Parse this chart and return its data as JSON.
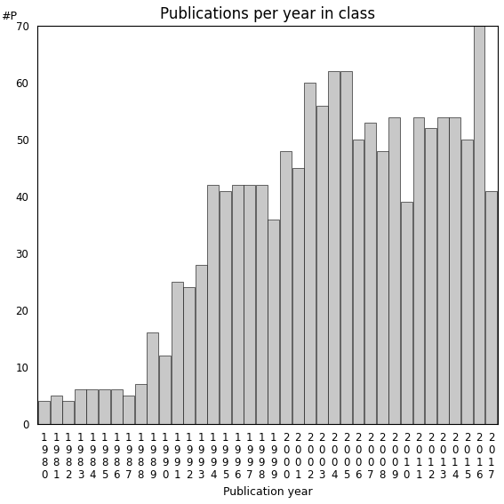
{
  "title": "Publications per year in class",
  "xlabel": "Publication year",
  "ylabel_text": "#P",
  "years": [
    "1980",
    "1981",
    "1982",
    "1983",
    "1984",
    "1985",
    "1986",
    "1987",
    "1988",
    "1989",
    "1990",
    "1991",
    "1992",
    "1993",
    "1994",
    "1995",
    "1996",
    "1997",
    "1998",
    "1999",
    "2000",
    "2001",
    "2002",
    "2003",
    "2004",
    "2005",
    "2006",
    "2007",
    "2008",
    "2009",
    "2010",
    "2011",
    "2012",
    "2013",
    "2014",
    "2015",
    "2016",
    "2017"
  ],
  "values": [
    4,
    5,
    4,
    6,
    6,
    6,
    6,
    5,
    7,
    16,
    12,
    25,
    24,
    28,
    42,
    41,
    42,
    42,
    42,
    36,
    48,
    45,
    60,
    56,
    62,
    62,
    50,
    53,
    48,
    54,
    39,
    54,
    52,
    54,
    54,
    50,
    70,
    41
  ],
  "bar_color": "#c8c8c8",
  "bar_edge_color": "#000000",
  "bar_linewidth": 0.4,
  "ylim": [
    0,
    70
  ],
  "yticks": [
    0,
    10,
    20,
    30,
    40,
    50,
    60,
    70
  ],
  "background_color": "#ffffff",
  "title_fontsize": 12,
  "axis_label_fontsize": 9,
  "tick_fontsize": 8.5,
  "ylabel_fontsize": 9
}
